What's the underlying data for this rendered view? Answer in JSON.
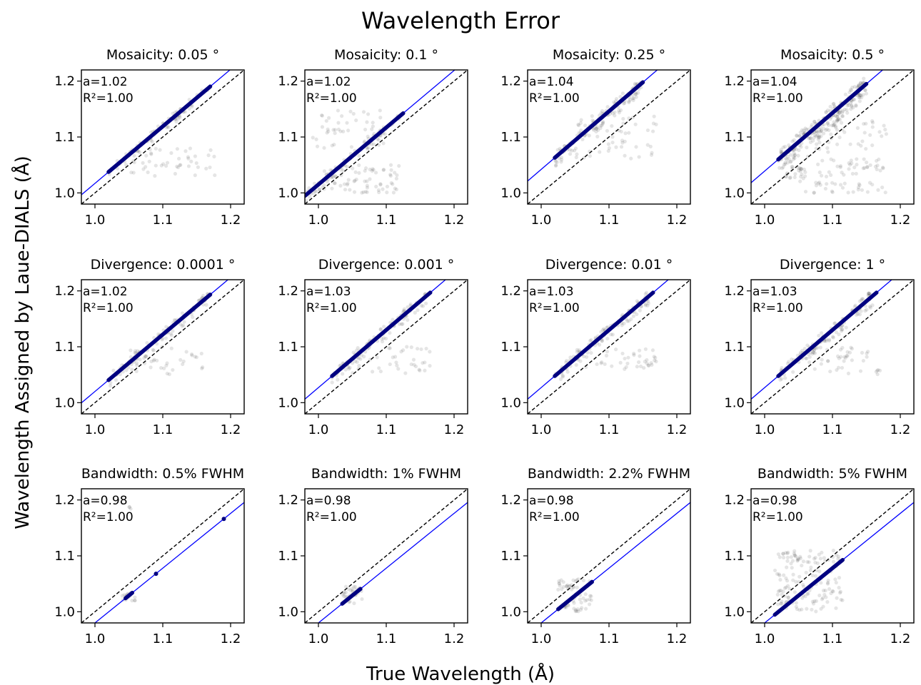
{
  "figure": {
    "title": "Wavelength Error",
    "xlabel": "True Wavelength (Å)",
    "ylabel": "Wavelength Assigned by Laue-DIALS (Å)"
  },
  "colors": {
    "fit_line": "#0000ff",
    "identity_line": "#000000",
    "scatter": "#000000",
    "fit_marker": "#000080"
  },
  "chart_data": [
    {
      "type": "scatter",
      "title": "Mosaicity: 0.05 °",
      "xlim": [
        0.98,
        1.22
      ],
      "ylim": [
        0.98,
        1.22
      ],
      "xticks": [
        "1.0",
        "1.1",
        "1.2"
      ],
      "yticks": [
        "1.0",
        "1.1",
        "1.2"
      ],
      "fit": {
        "a": 1.02,
        "b": -0.003,
        "label_a": "a=1.02",
        "label_r2": "R²=1.00",
        "x_range": [
          1.02,
          1.17
        ]
      },
      "identity": true,
      "scatter_clusters": [
        {
          "x_range": [
            1.02,
            1.17
          ],
          "y_range": [
            1.02,
            1.19
          ],
          "n": 70,
          "offset": 0.02
        },
        {
          "x_range": [
            1.04,
            1.18
          ],
          "y_range": [
            1.03,
            1.08
          ],
          "n": 50
        }
      ]
    },
    {
      "type": "scatter",
      "title": "Mosaicity: 0.1 °",
      "xlim": [
        0.98,
        1.22
      ],
      "ylim": [
        0.98,
        1.22
      ],
      "xticks": [
        "1.0",
        "1.1",
        "1.2"
      ],
      "yticks": [
        "1.0",
        "1.1",
        "1.2"
      ],
      "fit": {
        "a": 1.02,
        "b": -0.005,
        "label_a": "a=1.02",
        "label_r2": "R²=1.00",
        "x_range": [
          0.98,
          1.125
        ]
      },
      "identity": true,
      "scatter_clusters": [
        {
          "x_range": [
            0.98,
            1.12
          ],
          "y_range": [
            0.99,
            1.14
          ],
          "n": 70,
          "offset": 0.02
        },
        {
          "x_range": [
            0.99,
            1.1
          ],
          "y_range": [
            1.08,
            1.15
          ],
          "n": 45
        },
        {
          "x_range": [
            1.0,
            1.12
          ],
          "y_range": [
            1.0,
            1.05
          ],
          "n": 70
        }
      ]
    },
    {
      "type": "scatter",
      "title": "Mosaicity: 0.25 °",
      "xlim": [
        0.98,
        1.22
      ],
      "ylim": [
        0.98,
        1.22
      ],
      "xticks": [
        "1.0",
        "1.1",
        "1.2"
      ],
      "yticks": [
        "1.0",
        "1.1",
        "1.2"
      ],
      "fit": {
        "a": 1.04,
        "b": 0.002,
        "label_a": "a=1.04",
        "label_r2": "R²=1.00",
        "x_range": [
          1.02,
          1.15
        ]
      },
      "identity": true,
      "scatter_clusters": [
        {
          "x_range": [
            1.02,
            1.15
          ],
          "y_range": [
            1.06,
            1.19
          ],
          "n": 120,
          "offset": 0.03
        },
        {
          "x_range": [
            1.05,
            1.17
          ],
          "y_range": [
            1.06,
            1.14
          ],
          "n": 50
        }
      ]
    },
    {
      "type": "scatter",
      "title": "Mosaicity: 0.5 °",
      "xlim": [
        0.98,
        1.22
      ],
      "ylim": [
        0.98,
        1.22
      ],
      "xticks": [
        "1.0",
        "1.1",
        "1.2"
      ],
      "yticks": [
        "1.0",
        "1.1",
        "1.2"
      ],
      "fit": {
        "a": 1.04,
        "b": -0.001,
        "label_a": "a=1.04",
        "label_r2": "R²=1.00",
        "x_range": [
          1.02,
          1.15
        ]
      },
      "identity": true,
      "scatter_clusters": [
        {
          "x_range": [
            1.02,
            1.15
          ],
          "y_range": [
            1.05,
            1.19
          ],
          "n": 220,
          "offset": 0.04
        },
        {
          "x_range": [
            1.03,
            1.06
          ],
          "y_range": [
            1.02,
            1.05
          ],
          "n": 25
        },
        {
          "x_range": [
            1.06,
            1.18
          ],
          "y_range": [
            1.0,
            1.13
          ],
          "n": 120
        }
      ]
    },
    {
      "type": "scatter",
      "title": "Divergence: 0.0001 °",
      "xlim": [
        0.98,
        1.22
      ],
      "ylim": [
        0.98,
        1.22
      ],
      "xticks": [
        "1.0",
        "1.1",
        "1.2"
      ],
      "yticks": [
        "1.0",
        "1.1",
        "1.2"
      ],
      "fit": {
        "a": 1.02,
        "b": 0.0,
        "label_a": "a=1.02",
        "label_r2": "R²=1.00",
        "x_range": [
          1.02,
          1.17
        ]
      },
      "identity": true,
      "scatter_clusters": [
        {
          "x_range": [
            1.02,
            1.17
          ],
          "y_range": [
            1.04,
            1.19
          ],
          "n": 90,
          "offset": 0.025
        },
        {
          "x_range": [
            1.05,
            1.16
          ],
          "y_range": [
            1.05,
            1.1
          ],
          "n": 40
        }
      ]
    },
    {
      "type": "scatter",
      "title": "Divergence: 0.001 °",
      "xlim": [
        0.98,
        1.22
      ],
      "ylim": [
        0.98,
        1.22
      ],
      "xticks": [
        "1.0",
        "1.1",
        "1.2"
      ],
      "yticks": [
        "1.0",
        "1.1",
        "1.2"
      ],
      "fit": {
        "a": 1.03,
        "b": -0.003,
        "label_a": "a=1.03",
        "label_r2": "R²=1.00",
        "x_range": [
          1.02,
          1.165
        ]
      },
      "identity": true,
      "scatter_clusters": [
        {
          "x_range": [
            1.02,
            1.16
          ],
          "y_range": [
            1.04,
            1.19
          ],
          "n": 100,
          "offset": 0.025
        },
        {
          "x_range": [
            1.05,
            1.17
          ],
          "y_range": [
            1.05,
            1.1
          ],
          "n": 45
        }
      ]
    },
    {
      "type": "scatter",
      "title": "Divergence: 0.01 °",
      "xlim": [
        0.98,
        1.22
      ],
      "ylim": [
        0.98,
        1.22
      ],
      "xticks": [
        "1.0",
        "1.1",
        "1.2"
      ],
      "yticks": [
        "1.0",
        "1.1",
        "1.2"
      ],
      "fit": {
        "a": 1.03,
        "b": -0.003,
        "label_a": "a=1.03",
        "label_r2": "R²=1.00",
        "x_range": [
          1.02,
          1.165
        ]
      },
      "identity": true,
      "scatter_clusters": [
        {
          "x_range": [
            1.02,
            1.16
          ],
          "y_range": [
            1.04,
            1.19
          ],
          "n": 100,
          "offset": 0.025
        },
        {
          "x_range": [
            1.05,
            1.17
          ],
          "y_range": [
            1.06,
            1.1
          ],
          "n": 40
        }
      ]
    },
    {
      "type": "scatter",
      "title": "Divergence: 1 °",
      "xlim": [
        0.98,
        1.22
      ],
      "ylim": [
        0.98,
        1.22
      ],
      "xticks": [
        "1.0",
        "1.1",
        "1.2"
      ],
      "yticks": [
        "1.0",
        "1.1",
        "1.2"
      ],
      "fit": {
        "a": 1.03,
        "b": -0.003,
        "label_a": "a=1.03",
        "label_r2": "R²=1.00",
        "x_range": [
          1.02,
          1.165
        ]
      },
      "identity": true,
      "scatter_clusters": [
        {
          "x_range": [
            1.02,
            1.16
          ],
          "y_range": [
            1.04,
            1.19
          ],
          "n": 110,
          "offset": 0.03
        },
        {
          "x_range": [
            1.04,
            1.17
          ],
          "y_range": [
            1.05,
            1.1
          ],
          "n": 50
        }
      ]
    },
    {
      "type": "scatter",
      "title": "Bandwidth: 0.5% FWHM",
      "xlim": [
        0.98,
        1.22
      ],
      "ylim": [
        0.98,
        1.22
      ],
      "xticks": [
        "1.0",
        "1.1",
        "1.2"
      ],
      "yticks": [
        "1.0",
        "1.1",
        "1.2"
      ],
      "fit": {
        "a": 0.98,
        "b": 0.0,
        "label_a": "a=0.98",
        "label_r2": "R²=1.00",
        "x_range": [
          1.045,
          1.055
        ]
      },
      "identity": true,
      "fit_points": [
        [
          1.09,
          1.068
        ],
        [
          1.19,
          1.166
        ]
      ],
      "scatter_clusters": [
        {
          "x_range": [
            1.04,
            1.06
          ],
          "y_range": [
            1.02,
            1.04
          ],
          "n": 15
        },
        {
          "x_range": [
            1.05,
            1.06
          ],
          "y_range": [
            1.18,
            1.19
          ],
          "n": 3
        }
      ]
    },
    {
      "type": "scatter",
      "title": "Bandwidth: 1% FWHM",
      "xlim": [
        0.98,
        1.22
      ],
      "ylim": [
        0.98,
        1.22
      ],
      "xticks": [
        "1.0",
        "1.1",
        "1.2"
      ],
      "yticks": [
        "1.0",
        "1.1",
        "1.2"
      ],
      "fit": {
        "a": 0.98,
        "b": 0.0,
        "label_a": "a=0.98",
        "label_r2": "R²=1.00",
        "x_range": [
          1.035,
          1.062
        ]
      },
      "identity": true,
      "scatter_clusters": [
        {
          "x_range": [
            1.035,
            1.065
          ],
          "y_range": [
            1.015,
            1.045
          ],
          "n": 30
        }
      ]
    },
    {
      "type": "scatter",
      "title": "Bandwidth: 2.2% FWHM",
      "xlim": [
        0.98,
        1.22
      ],
      "ylim": [
        0.98,
        1.22
      ],
      "xticks": [
        "1.0",
        "1.1",
        "1.2"
      ],
      "yticks": [
        "1.0",
        "1.1",
        "1.2"
      ],
      "fit": {
        "a": 0.98,
        "b": 0.0,
        "label_a": "a=0.98",
        "label_r2": "R²=1.00",
        "x_range": [
          1.025,
          1.075
        ]
      },
      "identity": true,
      "scatter_clusters": [
        {
          "x_range": [
            1.025,
            1.075
          ],
          "y_range": [
            1.0,
            1.06
          ],
          "n": 60
        }
      ]
    },
    {
      "type": "scatter",
      "title": "Bandwidth: 5% FWHM",
      "xlim": [
        0.98,
        1.22
      ],
      "ylim": [
        0.98,
        1.22
      ],
      "xticks": [
        "1.0",
        "1.1",
        "1.2"
      ],
      "yticks": [
        "1.0",
        "1.1",
        "1.2"
      ],
      "fit": {
        "a": 0.98,
        "b": 0.0,
        "label_a": "a=0.98",
        "label_r2": "R²=1.00",
        "x_range": [
          1.015,
          1.115
        ]
      },
      "identity": true,
      "scatter_clusters": [
        {
          "x_range": [
            1.015,
            1.115
          ],
          "y_range": [
            1.0,
            1.11
          ],
          "n": 150
        }
      ]
    }
  ]
}
